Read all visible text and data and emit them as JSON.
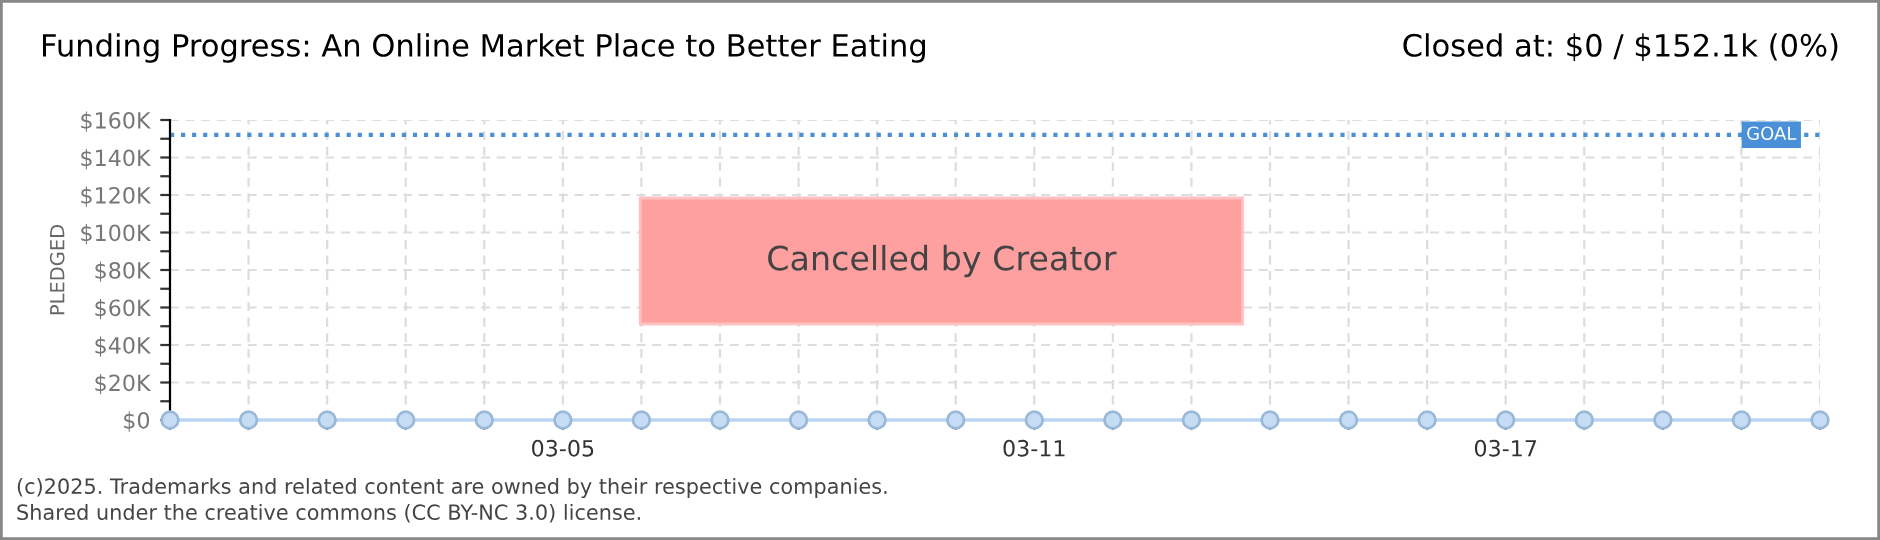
{
  "chart_data": {
    "type": "line",
    "title": "Funding Progress: An Online Market Place to Better Eating",
    "subtitle": "Closed at: $0 / $152.1k (0%)",
    "ylabel": "PLEDGED",
    "categories": [
      null,
      null,
      null,
      null,
      null,
      "03-05",
      null,
      null,
      null,
      null,
      null,
      "03-11",
      null,
      null,
      null,
      null,
      null,
      "03-17",
      null,
      null,
      null,
      null
    ],
    "series": [
      {
        "color": "#b9d5f2",
        "values": [
          0,
          0,
          0,
          0,
          0,
          0,
          0,
          0,
          0,
          0,
          0,
          0,
          0,
          0,
          0,
          0,
          0,
          0,
          0,
          0,
          0,
          0
        ]
      }
    ],
    "marker": "circle",
    "grid": true,
    "ylim": [
      0,
      160000
    ],
    "yticks": [
      {
        "value": 0,
        "label": "$0"
      },
      {
        "value": 10000,
        "label": null
      },
      {
        "value": 20000,
        "label": "$20K"
      },
      {
        "value": 30000,
        "label": null
      },
      {
        "value": 40000,
        "label": "$40K"
      },
      {
        "value": 50000,
        "label": null
      },
      {
        "value": 60000,
        "label": "$60K"
      },
      {
        "value": 70000,
        "label": null
      },
      {
        "value": 80000,
        "label": "$80K"
      },
      {
        "value": 90000,
        "label": null
      },
      {
        "value": 100000,
        "label": "$100K"
      },
      {
        "value": 110000,
        "label": null
      },
      {
        "value": 120000,
        "label": "$120K"
      },
      {
        "value": 130000,
        "label": null
      },
      {
        "value": 140000,
        "label": "$140K"
      },
      {
        "value": 150000,
        "label": null
      },
      {
        "value": 160000,
        "label": "$160K"
      }
    ],
    "ref_lines": [
      {
        "axis": "y",
        "value": 152100,
        "label": "GOAL",
        "color": "#4a90d9",
        "line_style": "dotted"
      }
    ],
    "annotations": [
      "Cancelled by Creator",
      "(c)2025. Trademarks and related content are owned by their respective companies.",
      "Shared under the creative commons (CC BY-NC 3.0) license."
    ]
  }
}
